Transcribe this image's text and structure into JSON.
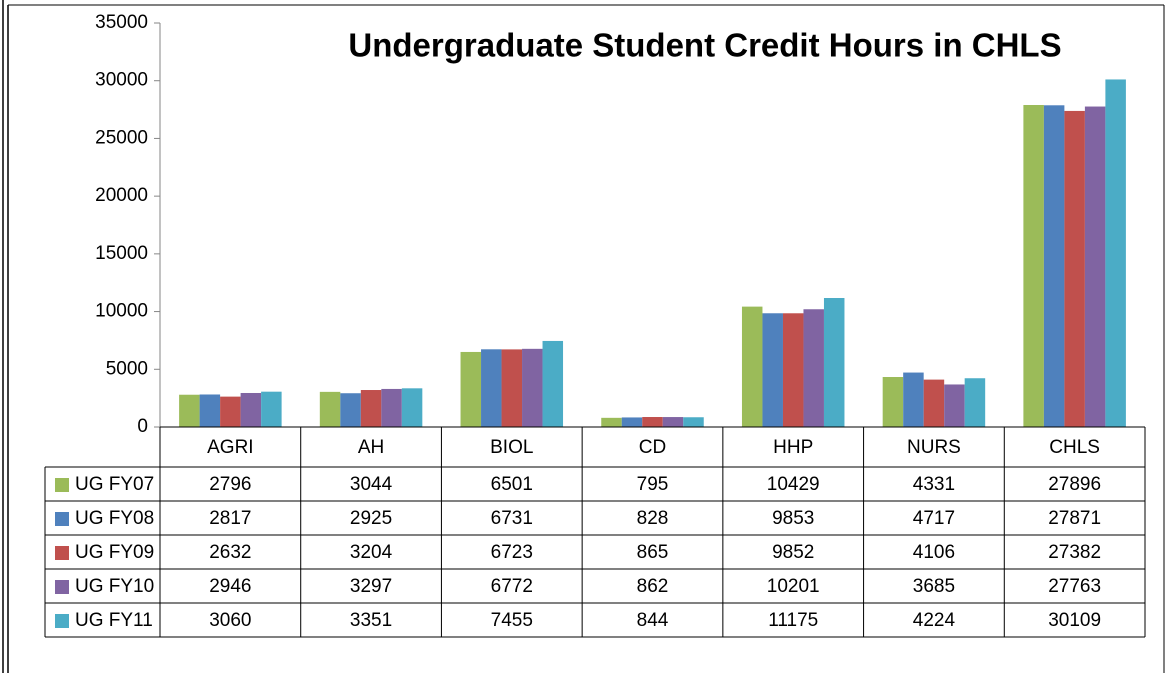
{
  "chart_data": {
    "type": "bar",
    "title": "Undergraduate Student Credit Hours in CHLS",
    "categories": [
      "AGRI",
      "AH",
      "BIOL",
      "CD",
      "HHP",
      "NURS",
      "CHLS"
    ],
    "series": [
      {
        "name": "UG FY07",
        "color": "#9bbb59",
        "values": [
          2796,
          3044,
          6501,
          795,
          10429,
          4331,
          27896
        ]
      },
      {
        "name": "UG FY08",
        "color": "#4f81bd",
        "values": [
          2817,
          2925,
          6731,
          828,
          9853,
          4717,
          27871
        ]
      },
      {
        "name": "UG FY09",
        "color": "#c0504d",
        "values": [
          2632,
          3204,
          6723,
          865,
          9852,
          4106,
          27382
        ]
      },
      {
        "name": "UG FY10",
        "color": "#8064a2",
        "values": [
          2946,
          3297,
          6772,
          862,
          10201,
          3685,
          27763
        ]
      },
      {
        "name": "UG FY11",
        "color": "#4bacc6",
        "values": [
          3060,
          3351,
          7455,
          844,
          11175,
          4224,
          30109
        ]
      }
    ],
    "ylim": [
      0,
      35000
    ],
    "yticks": [
      0,
      5000,
      10000,
      15000,
      20000,
      25000,
      30000,
      35000
    ],
    "grid": false
  }
}
